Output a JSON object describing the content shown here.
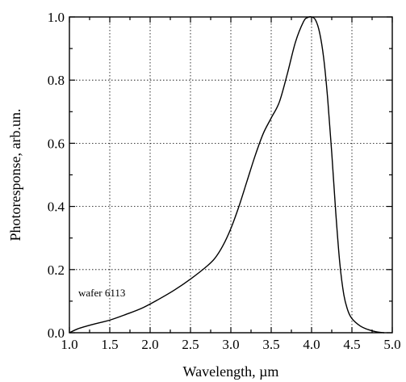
{
  "chart_data": {
    "type": "line",
    "title": "",
    "xlabel": "Wavelength, µm",
    "ylabel": "Photoresponse, arb.un.",
    "xlim": [
      1.0,
      5.0
    ],
    "ylim": [
      0.0,
      1.0
    ],
    "x_ticks": [
      1.0,
      1.5,
      2.0,
      2.5,
      3.0,
      3.5,
      4.0,
      4.5,
      5.0
    ],
    "y_ticks": [
      0.0,
      0.2,
      0.4,
      0.6,
      0.8,
      1.0
    ],
    "x_tick_labels": [
      "1.0",
      "1.5",
      "2.0",
      "2.5",
      "3.0",
      "3.5",
      "4.0",
      "4.5",
      "5.0"
    ],
    "y_tick_labels": [
      "0.0",
      "0.2",
      "0.4",
      "0.6",
      "0.8",
      "1.0"
    ],
    "grid": true,
    "annotation": "wafer 6113",
    "series": [
      {
        "x": [
          1.0,
          1.1,
          1.2,
          1.3,
          1.5,
          1.7,
          1.9,
          2.1,
          2.3,
          2.5,
          2.7,
          2.8,
          2.9,
          3.0,
          3.1,
          3.2,
          3.3,
          3.4,
          3.5,
          3.6,
          3.7,
          3.8,
          3.9,
          3.95,
          4.0,
          4.05,
          4.1,
          4.15,
          4.2,
          4.25,
          4.3,
          4.35,
          4.4,
          4.45,
          4.5,
          4.6,
          4.7,
          4.8,
          4.9
        ],
        "y": [
          0.0,
          0.012,
          0.02,
          0.027,
          0.04,
          0.058,
          0.078,
          0.105,
          0.135,
          0.17,
          0.21,
          0.235,
          0.275,
          0.33,
          0.4,
          0.48,
          0.56,
          0.63,
          0.68,
          0.73,
          0.82,
          0.92,
          0.985,
          0.998,
          1.0,
          0.99,
          0.95,
          0.87,
          0.74,
          0.57,
          0.38,
          0.22,
          0.12,
          0.07,
          0.045,
          0.022,
          0.01,
          0.003,
          0.0
        ]
      }
    ]
  }
}
